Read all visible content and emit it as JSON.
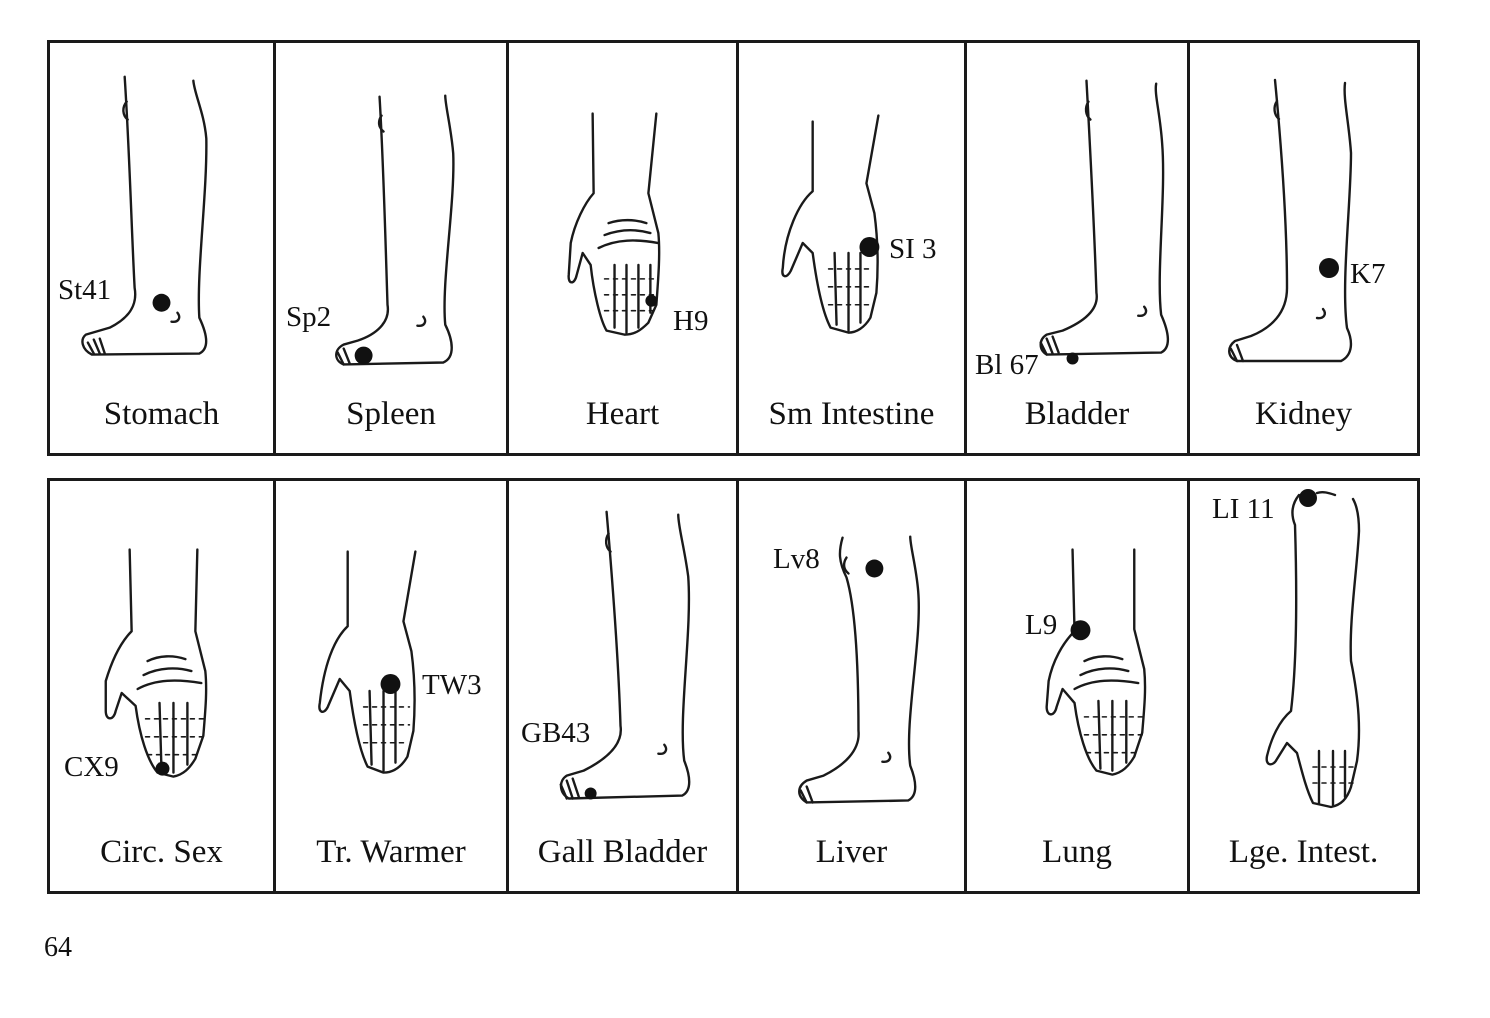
{
  "top_row": [
    {
      "organ": "Stomach",
      "point": "St41"
    },
    {
      "organ": "Spleen",
      "point": "Sp2"
    },
    {
      "organ": "Heart",
      "point": "H9"
    },
    {
      "organ": "Sm Intestine",
      "point": "SI 3"
    },
    {
      "organ": "Bladder",
      "point": "Bl 67"
    },
    {
      "organ": "Kidney",
      "point": "K7"
    }
  ],
  "bottom_row": [
    {
      "organ": "Circ. Sex",
      "point": "CX9"
    },
    {
      "organ": "Tr. Warmer",
      "point": "TW3"
    },
    {
      "organ": "Gall Bladder",
      "point": "GB43"
    },
    {
      "organ": "Liver",
      "point": "Lv8"
    },
    {
      "organ": "Lung",
      "point": "L9"
    },
    {
      "organ": "Lge. Intest.",
      "point": "LI 11"
    }
  ],
  "page_number": "64"
}
